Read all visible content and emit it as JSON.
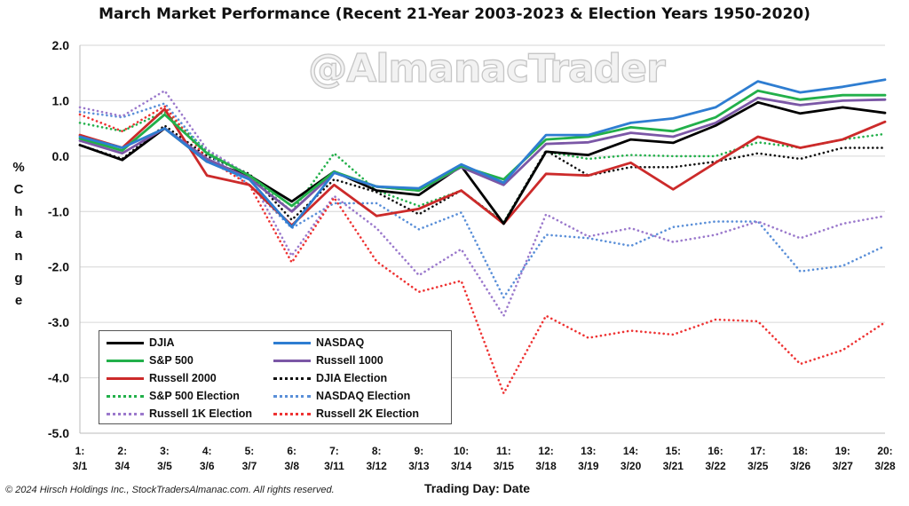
{
  "page": {
    "watermark": "@AlmanacTrader",
    "copyright": "© 2024 Hirsch Holdings Inc., StockTradersAlmanac.com. All rights reserved."
  },
  "chart_data": {
    "type": "line",
    "title": "March Market Performance (Recent 21-Year 2003-2023 & Election Years 1950-2020)",
    "xlabel": "Trading Day: Date",
    "ylabel": "% Change",
    "ylim": [
      -5.0,
      2.0
    ],
    "yticks": [
      "2.0",
      "1.0",
      "0.0",
      "-1.0",
      "-2.0",
      "-3.0",
      "-4.0",
      "-5.0"
    ],
    "grid": "horizontal",
    "legend_position": "bottom-left",
    "categories": [
      [
        "1:",
        "3/1"
      ],
      [
        "2:",
        "3/4"
      ],
      [
        "3:",
        "3/5"
      ],
      [
        "4:",
        "3/6"
      ],
      [
        "5:",
        "3/7"
      ],
      [
        "6:",
        "3/8"
      ],
      [
        "7:",
        "3/11"
      ],
      [
        "8:",
        "3/12"
      ],
      [
        "9:",
        "3/13"
      ],
      [
        "10:",
        "3/14"
      ],
      [
        "11:",
        "3/15"
      ],
      [
        "12:",
        "3/18"
      ],
      [
        "13:",
        "3/19"
      ],
      [
        "14:",
        "3/20"
      ],
      [
        "15:",
        "3/21"
      ],
      [
        "16:",
        "3/22"
      ],
      [
        "17:",
        "3/25"
      ],
      [
        "18:",
        "3/26"
      ],
      [
        "19:",
        "3/27"
      ],
      [
        "20:",
        "3/28"
      ]
    ],
    "series": [
      {
        "name": "DJIA",
        "color": "#000000",
        "style": "solid",
        "values": [
          0.2,
          -0.07,
          0.5,
          -0.1,
          -0.35,
          -0.82,
          -0.28,
          -0.62,
          -0.7,
          -0.18,
          -1.22,
          0.08,
          0.02,
          0.3,
          0.24,
          0.55,
          0.97,
          0.77,
          0.88,
          0.78
        ]
      },
      {
        "name": "S&P 500",
        "color": "#22b04a",
        "style": "solid",
        "values": [
          0.32,
          0.1,
          0.75,
          0.05,
          -0.35,
          -0.9,
          -0.28,
          -0.55,
          -0.62,
          -0.18,
          -0.42,
          0.3,
          0.35,
          0.52,
          0.45,
          0.7,
          1.18,
          1.02,
          1.1,
          1.1
        ]
      },
      {
        "name": "NASDAQ",
        "color": "#2e7dd1",
        "style": "solid",
        "values": [
          0.35,
          0.15,
          0.5,
          -0.1,
          -0.42,
          -1.28,
          -0.3,
          -0.55,
          -0.58,
          -0.15,
          -0.48,
          0.38,
          0.38,
          0.6,
          0.68,
          0.88,
          1.35,
          1.15,
          1.25,
          1.38
        ]
      },
      {
        "name": "Russell 1000",
        "color": "#7b57a6",
        "style": "solid",
        "values": [
          0.28,
          0.05,
          0.5,
          -0.05,
          -0.4,
          -1.0,
          -0.3,
          -0.55,
          -0.62,
          -0.2,
          -0.52,
          0.22,
          0.25,
          0.42,
          0.35,
          0.6,
          1.05,
          0.92,
          1.0,
          1.02
        ]
      },
      {
        "name": "Russell 2000",
        "color": "#cc2a2a",
        "style": "solid",
        "values": [
          0.38,
          0.15,
          0.85,
          -0.35,
          -0.52,
          -1.25,
          -0.52,
          -1.08,
          -0.95,
          -0.62,
          -1.22,
          -0.32,
          -0.35,
          -0.12,
          -0.6,
          -0.12,
          0.35,
          0.15,
          0.3,
          0.62
        ]
      },
      {
        "name": "DJIA Election",
        "color": "#111111",
        "style": "dotted",
        "values": [
          0.2,
          -0.05,
          0.55,
          0.0,
          -0.32,
          -1.15,
          -0.42,
          -0.65,
          -1.05,
          -0.62,
          -1.2,
          0.1,
          -0.35,
          -0.2,
          -0.2,
          -0.1,
          0.05,
          -0.05,
          0.15,
          0.15
        ]
      },
      {
        "name": "S&P 500 Election",
        "color": "#22b04a",
        "style": "dotted",
        "values": [
          0.6,
          0.45,
          0.8,
          0.1,
          -0.35,
          -1.0,
          0.05,
          -0.62,
          -0.9,
          -0.62,
          -1.2,
          0.08,
          -0.05,
          0.02,
          0.0,
          0.0,
          0.25,
          0.15,
          0.3,
          0.4
        ]
      },
      {
        "name": "NASDAQ Election",
        "color": "#5a8fd8",
        "style": "dotted",
        "values": [
          0.8,
          0.7,
          0.95,
          0.05,
          -0.52,
          -1.3,
          -0.85,
          -0.85,
          -1.32,
          -1.02,
          -2.55,
          -1.42,
          -1.48,
          -1.62,
          -1.28,
          -1.18,
          -1.18,
          -2.08,
          -1.98,
          -1.62
        ]
      },
      {
        "name": "Russell 1K Election",
        "color": "#9b79cc",
        "style": "dotted",
        "values": [
          0.88,
          0.72,
          1.18,
          0.12,
          -0.35,
          -1.8,
          -0.72,
          -1.3,
          -2.15,
          -1.68,
          -2.88,
          -1.05,
          -1.45,
          -1.3,
          -1.55,
          -1.42,
          -1.18,
          -1.48,
          -1.22,
          -1.08
        ]
      },
      {
        "name": "Russell 2K Election",
        "color": "#ee3333",
        "style": "dotted",
        "values": [
          0.75,
          0.45,
          0.9,
          -0.05,
          -0.52,
          -1.92,
          -0.75,
          -1.9,
          -2.45,
          -2.25,
          -4.28,
          -2.88,
          -3.28,
          -3.15,
          -3.22,
          -2.95,
          -2.98,
          -3.75,
          -3.5,
          -3.0
        ]
      }
    ]
  },
  "legend_rows": [
    [
      0,
      2
    ],
    [
      1,
      3
    ],
    [
      4,
      5
    ],
    [
      6,
      7
    ],
    [
      8,
      9
    ]
  ]
}
